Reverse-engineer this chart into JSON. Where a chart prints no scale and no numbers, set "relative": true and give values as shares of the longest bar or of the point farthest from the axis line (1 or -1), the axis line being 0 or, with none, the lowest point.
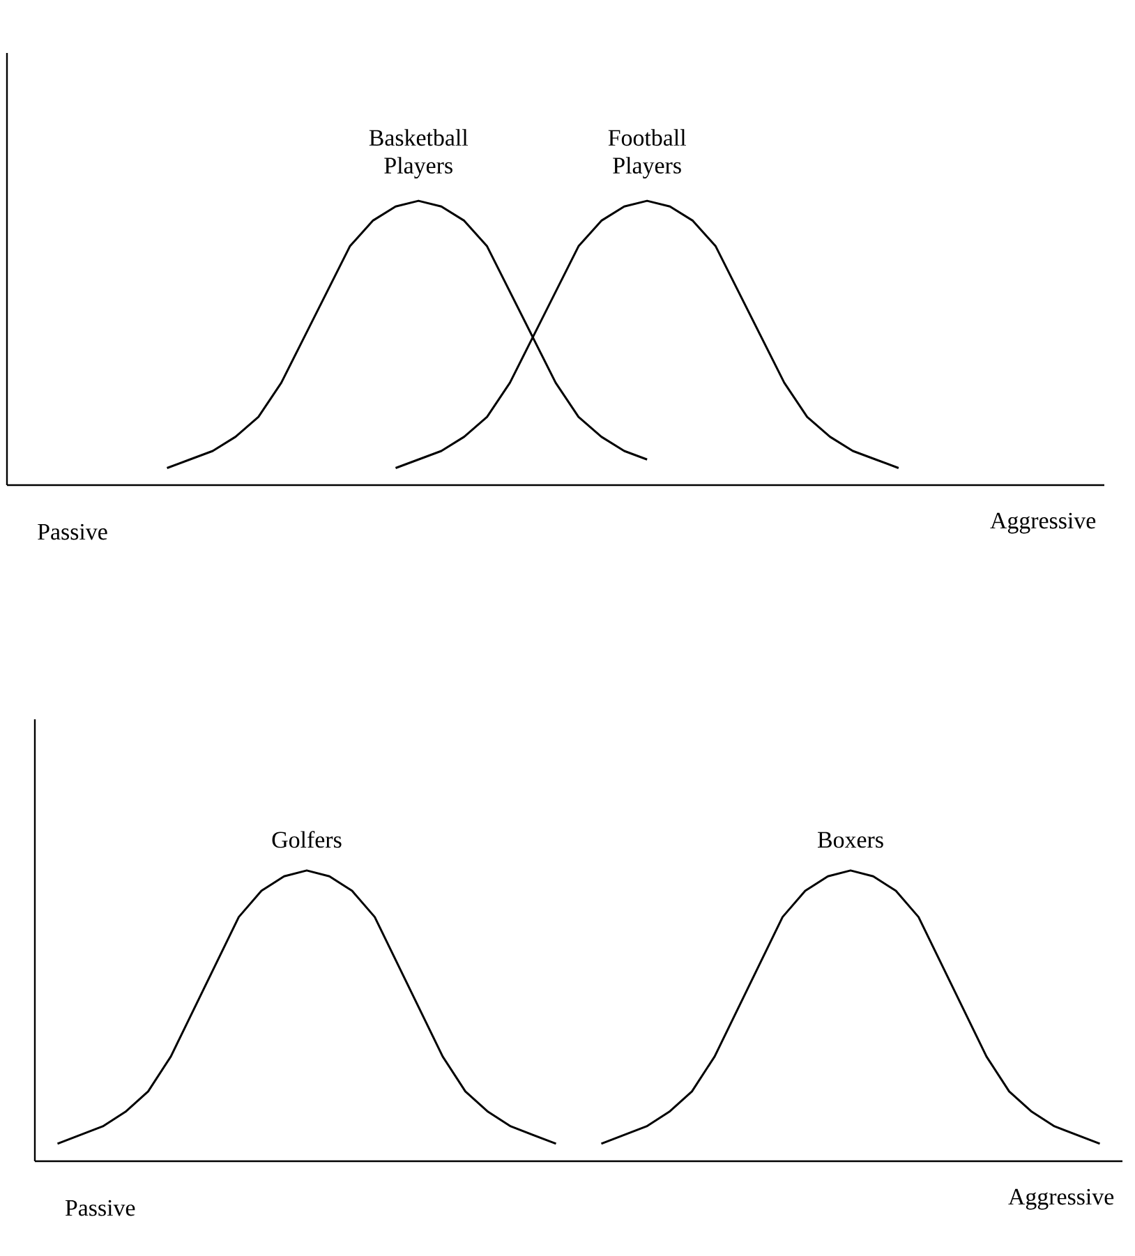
{
  "chart_data": [
    {
      "type": "line",
      "relative": true,
      "categories": [
        null,
        null,
        null,
        null,
        null,
        null,
        null,
        null,
        null,
        null,
        null,
        null,
        null,
        null,
        null,
        null,
        null,
        null,
        null,
        null,
        null,
        null,
        null,
        null,
        null,
        null,
        null,
        null,
        null,
        null,
        null,
        null,
        null,
        null,
        null,
        null,
        null,
        null,
        null,
        null,
        null,
        null,
        null,
        null,
        null,
        null,
        null,
        null,
        null
      ],
      "series": [
        {
          "name": "Basketball Players",
          "color": "#000000",
          "values": [
            null,
            null,
            null,
            null,
            null,
            null,
            null,
            0.06,
            0.09,
            0.12,
            0.17,
            0.24,
            0.36,
            0.52,
            0.68,
            0.84,
            0.93,
            0.98,
            1.0,
            0.98,
            0.93,
            0.84,
            0.68,
            0.52,
            0.36,
            0.24,
            0.17,
            0.12,
            0.09,
            null,
            null,
            null,
            null,
            null,
            null,
            null,
            null,
            null,
            null,
            null,
            null,
            null,
            null,
            null,
            null,
            null,
            null,
            null,
            null
          ]
        },
        {
          "name": "Football Players",
          "color": "#000000",
          "values": [
            null,
            null,
            null,
            null,
            null,
            null,
            null,
            null,
            null,
            null,
            null,
            null,
            null,
            null,
            null,
            null,
            null,
            0.06,
            0.09,
            0.12,
            0.17,
            0.24,
            0.36,
            0.52,
            0.68,
            0.84,
            0.93,
            0.98,
            1.0,
            0.98,
            0.93,
            0.84,
            0.68,
            0.52,
            0.36,
            0.24,
            0.17,
            0.12,
            0.09,
            0.06,
            null,
            null,
            null,
            null,
            null,
            null,
            null,
            null,
            null
          ]
        }
      ],
      "annotations": [
        "Passive",
        "Aggressive"
      ]
    },
    {
      "type": "line",
      "relative": true,
      "categories": [
        null,
        null,
        null,
        null,
        null,
        null,
        null,
        null,
        null,
        null,
        null,
        null,
        null,
        null,
        null,
        null,
        null,
        null,
        null,
        null,
        null,
        null,
        null,
        null,
        null,
        null,
        null,
        null,
        null,
        null,
        null,
        null,
        null,
        null,
        null,
        null,
        null,
        null,
        null,
        null,
        null,
        null,
        null,
        null,
        null,
        null,
        null,
        null,
        null
      ],
      "series": [
        {
          "name": "Golfers",
          "color": "#000000",
          "values": [
            null,
            0.06,
            0.09,
            0.12,
            0.17,
            0.24,
            0.36,
            0.52,
            0.68,
            0.84,
            0.93,
            0.98,
            1.0,
            0.98,
            0.93,
            0.84,
            0.68,
            0.52,
            0.36,
            0.24,
            0.17,
            0.12,
            0.09,
            0.06,
            null,
            null,
            null,
            null,
            null,
            null,
            null,
            null,
            null,
            null,
            null,
            null,
            null,
            null,
            null,
            null,
            null,
            null,
            null,
            null,
            null,
            null,
            null,
            null,
            null
          ]
        },
        {
          "name": "Boxers",
          "color": "#000000",
          "values": [
            null,
            null,
            null,
            null,
            null,
            null,
            null,
            null,
            null,
            null,
            null,
            null,
            null,
            null,
            null,
            null,
            null,
            null,
            null,
            null,
            null,
            null,
            null,
            null,
            null,
            0.06,
            0.09,
            0.12,
            0.17,
            0.24,
            0.36,
            0.52,
            0.68,
            0.84,
            0.93,
            0.98,
            1.0,
            0.98,
            0.93,
            0.84,
            0.68,
            0.52,
            0.36,
            0.24,
            0.17,
            0.12,
            0.09,
            0.06,
            null
          ]
        }
      ],
      "annotations": [
        "Passive",
        "Aggressive"
      ]
    }
  ]
}
